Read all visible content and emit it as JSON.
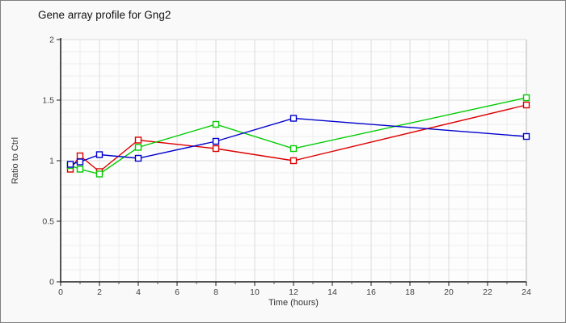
{
  "chart": {
    "title": "Gene array profile for Gng2",
    "xlabel": "Time (hours)",
    "ylabel": "Ratio to Ctrl"
  },
  "chart_data": {
    "type": "line",
    "title": "Gene array profile for Gng2",
    "xlabel": "Time (hours)",
    "ylabel": "Ratio to Ctrl",
    "x": [
      0.5,
      1,
      2,
      4,
      8,
      12,
      24
    ],
    "series": [
      {
        "name": "red-series",
        "color": "#dd0000",
        "values": [
          0.93,
          1.04,
          0.91,
          1.17,
          1.1,
          1.0,
          1.46
        ]
      },
      {
        "name": "green-series",
        "color": "#00cc00",
        "values": [
          0.96,
          0.93,
          0.89,
          1.11,
          1.3,
          1.1,
          1.52
        ]
      },
      {
        "name": "blue-series",
        "color": "#0000cc",
        "values": [
          0.97,
          0.99,
          1.05,
          1.02,
          1.16,
          1.35,
          1.2
        ]
      }
    ],
    "xlim": [
      0,
      24
    ],
    "ylim": [
      0,
      2
    ],
    "x_major_ticks": [
      0,
      2,
      4,
      6,
      8,
      10,
      12,
      14,
      16,
      18,
      20,
      22,
      24
    ],
    "x_minor_step": 1,
    "y_major_ticks": [
      0,
      0.5,
      1,
      1.5,
      2
    ],
    "y_minor_step": 0.1,
    "grid": true,
    "legend": "none",
    "marker": "open-square",
    "colors": {
      "axis": "#1a1a1a",
      "grid_major": "#dcdcdc",
      "grid_minor": "#ededed",
      "grid_right_edge": "#b5b5b5",
      "tick_label": "#444444",
      "plot_bg": "#fdfdfd"
    }
  }
}
